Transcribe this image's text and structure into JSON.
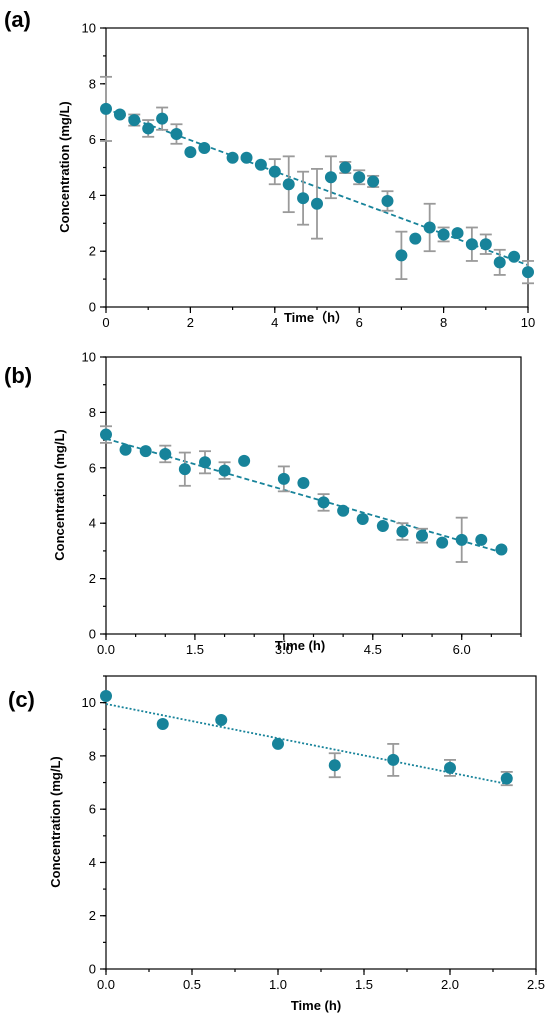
{
  "accent_color": "#17839a",
  "error_color": "#9a9a9a",
  "chart_data": [
    {
      "panel_label": "(a)",
      "type": "scatter",
      "xlabel": "Time（h）",
      "ylabel": "Concentration (mg/L)",
      "xlim": [
        0,
        10
      ],
      "ylim": [
        0,
        10
      ],
      "xticks": [
        0,
        2,
        4,
        6,
        8,
        10
      ],
      "xtick_labels": [
        "0",
        "2",
        "4",
        "6",
        "8",
        "10"
      ],
      "yticks": [
        0,
        2,
        4,
        6,
        8,
        10
      ],
      "ytick_labels": [
        "0",
        "2",
        "4",
        "6",
        "8",
        "10"
      ],
      "minor_x_step": 1,
      "minor_y_step": 1,
      "grid": false,
      "frame": "full",
      "trendline": {
        "style": "dashed",
        "x": [
          0,
          10
        ],
        "y": [
          7.1,
          1.5
        ]
      },
      "series": [
        {
          "marker": "circle",
          "color": "#17839a",
          "x": [
            0,
            0.33,
            0.67,
            1.0,
            1.33,
            1.67,
            2.0,
            2.33,
            3.0,
            3.33,
            3.67,
            4.0,
            4.33,
            4.67,
            5.0,
            5.33,
            5.67,
            6.0,
            6.33,
            6.67,
            7.0,
            7.33,
            7.67,
            8.0,
            8.33,
            8.67,
            9.0,
            9.33,
            9.67,
            10.0
          ],
          "y": [
            7.1,
            6.9,
            6.7,
            6.4,
            6.75,
            6.2,
            5.55,
            5.7,
            5.35,
            5.35,
            5.1,
            4.85,
            4.4,
            3.9,
            3.7,
            4.65,
            5.0,
            4.65,
            4.5,
            3.8,
            1.85,
            2.45,
            2.85,
            2.6,
            2.65,
            2.25,
            2.25,
            1.6,
            1.8,
            1.25
          ],
          "error": [
            1.15,
            0,
            0.2,
            0.3,
            0.4,
            0.35,
            0,
            0,
            0,
            0,
            0,
            0.45,
            1.0,
            0.95,
            1.25,
            0.75,
            0.2,
            0.25,
            0.2,
            0.35,
            0.85,
            0,
            0.85,
            0.25,
            0,
            0.6,
            0.35,
            0.45,
            0,
            0.4
          ]
        }
      ]
    },
    {
      "panel_label": "(b)",
      "type": "scatter",
      "xlabel": "Time (h)",
      "ylabel": "Concentration (mg/L)",
      "xlim": [
        0,
        7
      ],
      "ylim": [
        0,
        10
      ],
      "xticks": [
        0,
        1.5,
        3.0,
        4.5,
        6.0
      ],
      "xtick_labels": [
        "0.0",
        "1.5",
        "3.0",
        "4.5",
        "6.0"
      ],
      "yticks": [
        0,
        2,
        4,
        6,
        8,
        10
      ],
      "ytick_labels": [
        "0",
        "2",
        "4",
        "6",
        "8",
        "10"
      ],
      "minor_x_step": 0.5,
      "minor_y_step": 1,
      "grid": false,
      "frame": "full",
      "trendline": {
        "style": "dashed",
        "x": [
          0,
          6.67
        ],
        "y": [
          7.05,
          2.95
        ]
      },
      "series": [
        {
          "marker": "circle",
          "color": "#17839a",
          "x": [
            0,
            0.33,
            0.67,
            1.0,
            1.33,
            1.67,
            2.0,
            2.33,
            3.0,
            3.33,
            3.67,
            4.0,
            4.33,
            4.67,
            5.0,
            5.33,
            5.67,
            6.0,
            6.33,
            6.67
          ],
          "y": [
            7.2,
            6.65,
            6.6,
            6.5,
            5.95,
            6.2,
            5.9,
            6.25,
            5.6,
            5.45,
            4.75,
            4.45,
            4.15,
            3.9,
            3.7,
            3.55,
            3.3,
            3.4,
            3.4,
            3.05
          ],
          "error": [
            0.3,
            0,
            0,
            0.3,
            0.6,
            0.4,
            0.3,
            0,
            0.45,
            0,
            0.3,
            0,
            0,
            0,
            0.3,
            0.25,
            0,
            0.8,
            0,
            0
          ]
        }
      ]
    },
    {
      "panel_label": "(c)",
      "type": "scatter",
      "xlabel": "Time (h)",
      "ylabel": "Concentration (mg/L)",
      "xlim": [
        0,
        2.5
      ],
      "ylim": [
        0,
        11
      ],
      "xticks": [
        0,
        0.5,
        1.0,
        1.5,
        2.0,
        2.5
      ],
      "xtick_labels": [
        "0.0",
        "0.5",
        "1.0",
        "1.5",
        "2.0",
        "2.5"
      ],
      "yticks": [
        0,
        2,
        4,
        6,
        8,
        10
      ],
      "ytick_labels": [
        "0",
        "2",
        "4",
        "6",
        "8",
        "10"
      ],
      "minor_x_step": 0.25,
      "minor_y_step": 1,
      "grid": false,
      "frame": "full",
      "trendline": {
        "style": "dotted",
        "x": [
          0,
          2.33
        ],
        "y": [
          9.95,
          6.95
        ]
      },
      "series": [
        {
          "marker": "circle",
          "color": "#17839a",
          "x": [
            0,
            0.33,
            0.67,
            1.0,
            1.33,
            1.67,
            2.0,
            2.33
          ],
          "y": [
            10.25,
            9.2,
            9.35,
            8.45,
            7.65,
            7.85,
            7.55,
            7.15
          ],
          "error": [
            0,
            0,
            0,
            0,
            0.45,
            0.6,
            0.3,
            0.25
          ]
        }
      ]
    }
  ]
}
